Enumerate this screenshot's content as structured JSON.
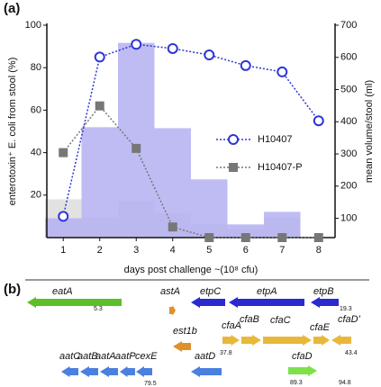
{
  "panel_a": "(a)",
  "panel_b": "(b)",
  "chart_data": {
    "type": "bar",
    "x": [
      1,
      2,
      3,
      4,
      5,
      6,
      7,
      8
    ],
    "xlim": [
      0.55,
      8.45
    ],
    "xticks": [
      1,
      2,
      3,
      4,
      5,
      6,
      7,
      8
    ],
    "ylim": [
      0,
      100
    ],
    "yticks": [
      20,
      40,
      60,
      80,
      100
    ],
    "y2lim": [
      40,
      700
    ],
    "y2ticks": [
      100,
      200,
      300,
      400,
      500,
      600,
      700
    ],
    "xlabel": "days post challenge ~(10⁸ cfu)",
    "ylabel": "enterotoxin⁺ E. coli from stool (%)",
    "y2label": "mean volume/stool (ml)",
    "legend": "right",
    "series": [
      {
        "type": "bar",
        "axis": "y2",
        "color": "#e2e2e2",
        "values": [
          159,
          103,
          154,
          117,
          81,
          67,
          103,
          null
        ]
      },
      {
        "type": "bar",
        "axis": "y2",
        "color": "#b4b0f2",
        "values": [
          100,
          383,
          645,
          380,
          221,
          81,
          120,
          null
        ]
      },
      {
        "type": "line",
        "name": "H10407",
        "color": "#2d36d6",
        "marker": "circle",
        "values": [
          10,
          85,
          91,
          89,
          86,
          81,
          78,
          55
        ]
      },
      {
        "type": "line",
        "name": "H10407-P",
        "color": "#777777",
        "marker": "square",
        "values": [
          40,
          62,
          42,
          5,
          0,
          0,
          0,
          0
        ]
      }
    ]
  },
  "genes": [
    {
      "label": "eatA",
      "color": "#5cbf2a"
    },
    {
      "label": "astA",
      "color": "#e0902a"
    },
    {
      "label": "etpC",
      "color": "#2a2ad0"
    },
    {
      "label": "etpA",
      "color": "#2a2ad0"
    },
    {
      "label": "etpB",
      "color": "#2a2ad0"
    },
    {
      "label": "est1b",
      "color": "#e0902a"
    },
    {
      "label": "cfaA",
      "color": "#e8b83a"
    },
    {
      "label": "cfaB",
      "color": "#e8b83a"
    },
    {
      "label": "cfaC",
      "color": "#e8b83a"
    },
    {
      "label": "cfaE",
      "color": "#e8b83a"
    },
    {
      "label": "cfaD'",
      "color": "#e8b83a"
    },
    {
      "label": "aatC",
      "color": "#4a80e0"
    },
    {
      "label": "aatB",
      "color": "#4a80e0"
    },
    {
      "label": "aatA",
      "color": "#4a80e0"
    },
    {
      "label": "aatP",
      "color": "#4a80e0"
    },
    {
      "label": "cexE",
      "color": "#4a80e0"
    },
    {
      "label": "aatD",
      "color": "#4a80e0"
    },
    {
      "label": "cfaD",
      "color": "#7ee04a"
    }
  ],
  "positions": [
    "5.3",
    "19.3",
    "37.8",
    "43.4",
    "79.5",
    "89.3",
    "94.8"
  ]
}
